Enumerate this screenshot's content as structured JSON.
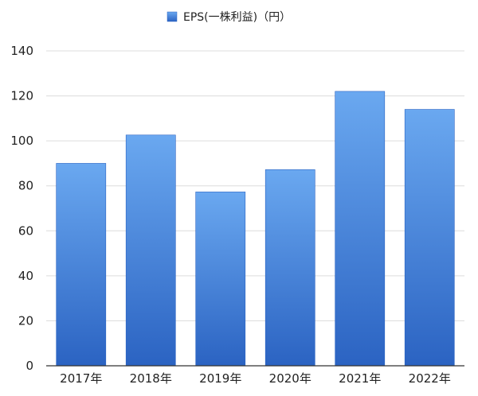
{
  "chart_data": {
    "type": "bar",
    "categories": [
      "2017年",
      "2018年",
      "2019年",
      "2020年",
      "2021年",
      "2022年"
    ],
    "series": [
      {
        "name": "EPS(一株利益)（円）",
        "values": [
          90,
          102.6,
          77.3,
          87.2,
          122,
          114
        ]
      }
    ],
    "title": "",
    "xlabel": "",
    "ylabel": "",
    "ylim": [
      0,
      140
    ],
    "yticks": [
      0,
      20,
      40,
      60,
      80,
      100,
      120,
      140
    ],
    "grid": true,
    "legend_position": "top-center",
    "colors": {
      "bar_top": "#6aa8f0",
      "bar_bottom": "#2b63c2",
      "grid": "#dcdcdc",
      "axis": "#333333"
    }
  }
}
